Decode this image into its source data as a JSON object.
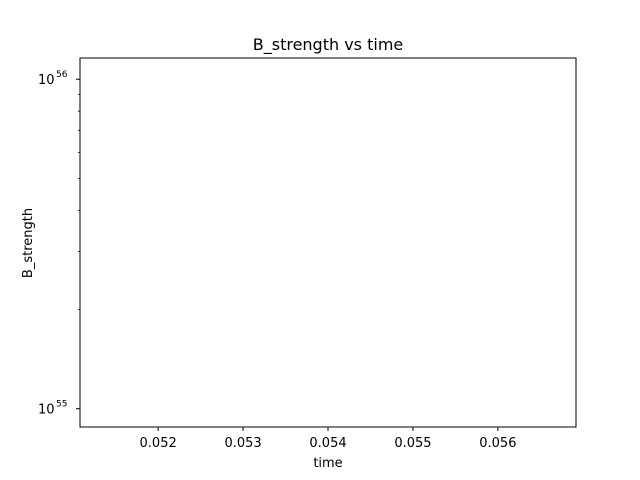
{
  "chart_data": {
    "type": "line",
    "title": "B_strength vs time",
    "xlabel": "time",
    "ylabel": "B_strength",
    "x_ticks": [
      {
        "value": 0.052,
        "label": "0.052"
      },
      {
        "value": 0.053,
        "label": "0.053"
      },
      {
        "value": 0.054,
        "label": "0.054"
      },
      {
        "value": 0.055,
        "label": "0.055"
      },
      {
        "value": 0.056,
        "label": "0.056"
      }
    ],
    "y_ticks": [
      {
        "value": 1e+55,
        "base": "10",
        "exp": "55"
      },
      {
        "value": 1e+56,
        "base": "10",
        "exp": "56"
      }
    ],
    "y_minor_ticks": [
      2e+55,
      3e+55,
      4e+55,
      5e+55,
      6e+55,
      7e+55,
      8e+55,
      9e+55
    ],
    "xlim": [
      0.05108,
      0.05692
    ],
    "ylim": [
      8.8e+54,
      1.16e+56
    ],
    "yscale": "log",
    "grid": false,
    "series": []
  }
}
